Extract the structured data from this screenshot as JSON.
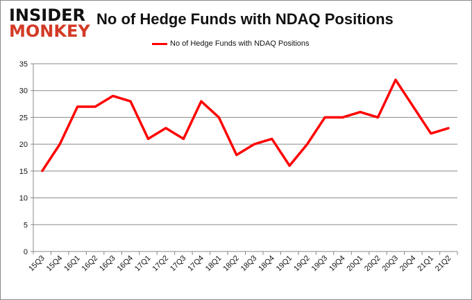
{
  "logo": {
    "line1": "INSIDER",
    "line2": "MONKEY"
  },
  "chart_data": {
    "type": "line",
    "title": "No of Hedge Funds with NDAQ Positions",
    "xlabel": "",
    "ylabel": "",
    "categories": [
      "15Q3",
      "15Q4",
      "16Q1",
      "16Q2",
      "16Q3",
      "16Q4",
      "17Q1",
      "17Q2",
      "17Q3",
      "17Q4",
      "18Q1",
      "18Q2",
      "18Q3",
      "18Q4",
      "19Q1",
      "19Q2",
      "19Q3",
      "19Q4",
      "20Q1",
      "20Q2",
      "20Q3",
      "20Q4",
      "21Q1",
      "21Q2"
    ],
    "series": [
      {
        "name": "No of Hedge Funds with NDAQ Positions",
        "color": "#ff0000",
        "values": [
          15,
          20,
          27,
          27,
          29,
          28,
          21,
          23,
          21,
          28,
          25,
          18,
          20,
          21,
          16,
          20,
          25,
          25,
          26,
          25,
          32,
          27,
          22,
          23
        ]
      }
    ],
    "ylim": [
      0,
      35
    ],
    "yticks": [
      0,
      5,
      10,
      15,
      20,
      25,
      30,
      35
    ],
    "grid": true,
    "legend": "top-center"
  }
}
